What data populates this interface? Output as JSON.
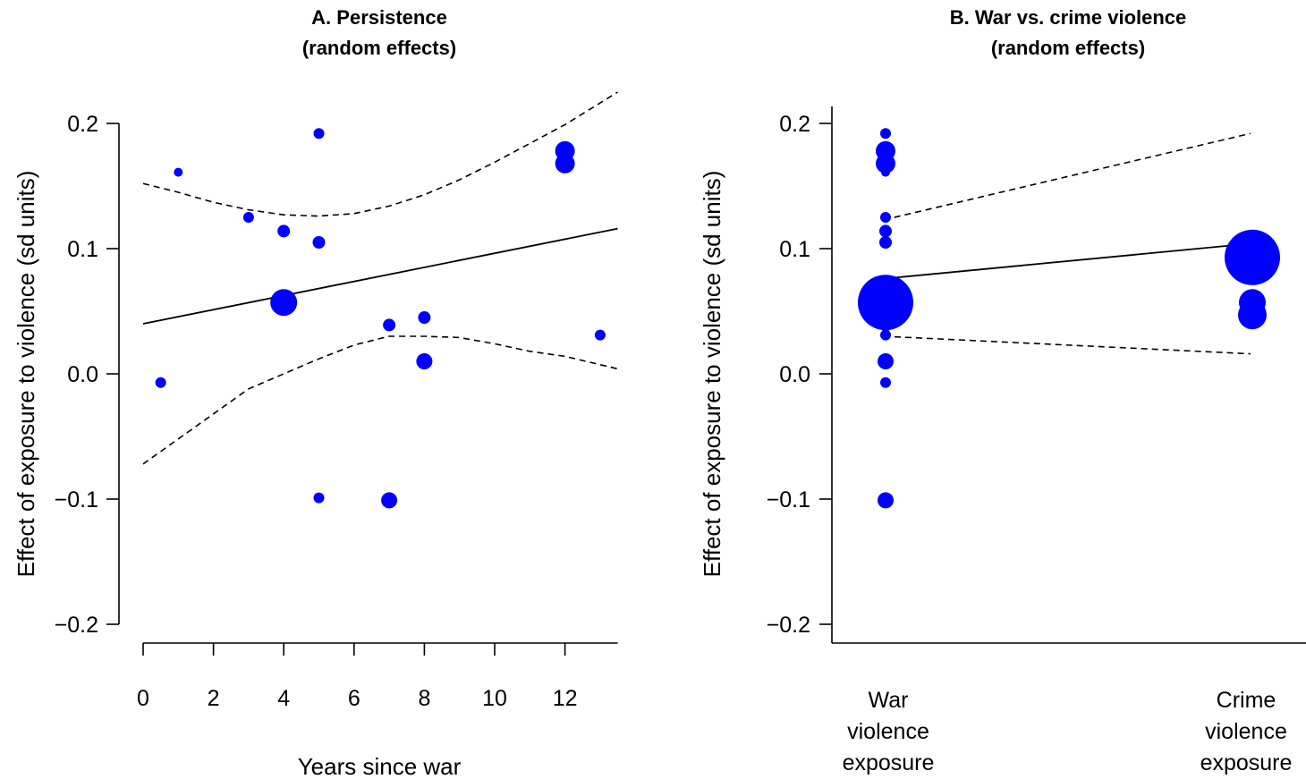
{
  "chart_data": [
    {
      "type": "scatter",
      "title": "A. Persistence",
      "subtitle": "(random effects)",
      "xlabel": "Years since war",
      "ylabel": "Effect of exposure to violence (sd units)",
      "xlim": [
        0,
        13.5
      ],
      "ylim": [
        -0.2,
        0.2
      ],
      "xticks": [
        0,
        2,
        4,
        6,
        8,
        10,
        12
      ],
      "xtick_labels": [
        "0",
        "2",
        "4",
        "6",
        "8",
        "10",
        "12"
      ],
      "yticks": [
        -0.2,
        -0.1,
        0.0,
        0.1,
        0.2
      ],
      "ytick_labels": [
        "−0.2",
        "−0.1",
        "0.0",
        "0.1",
        "0.2"
      ],
      "grid": false,
      "point_color": "#0000ff",
      "points": [
        {
          "x": 0.5,
          "y": -0.007,
          "size": 6
        },
        {
          "x": 1,
          "y": 0.161,
          "size": 5
        },
        {
          "x": 3,
          "y": 0.125,
          "size": 6
        },
        {
          "x": 4,
          "y": 0.114,
          "size": 7
        },
        {
          "x": 4,
          "y": 0.057,
          "size": 15
        },
        {
          "x": 5,
          "y": 0.192,
          "size": 6
        },
        {
          "x": 5,
          "y": 0.105,
          "size": 7
        },
        {
          "x": 5,
          "y": -0.099,
          "size": 6
        },
        {
          "x": 7,
          "y": 0.039,
          "size": 7
        },
        {
          "x": 7,
          "y": -0.101,
          "size": 9
        },
        {
          "x": 8,
          "y": 0.045,
          "size": 7
        },
        {
          "x": 8,
          "y": 0.01,
          "size": 9
        },
        {
          "x": 12,
          "y": 0.178,
          "size": 11
        },
        {
          "x": 12,
          "y": 0.168,
          "size": 11
        },
        {
          "x": 13,
          "y": 0.031,
          "size": 6
        }
      ],
      "fit_line": {
        "x": [
          0,
          13.5
        ],
        "y": [
          0.04,
          0.116
        ]
      },
      "ci_upper": {
        "x": [
          0,
          1,
          2,
          3,
          4,
          5,
          6,
          7,
          8,
          9,
          10,
          11,
          12,
          13.5
        ],
        "y": [
          0.152,
          0.145,
          0.137,
          0.131,
          0.127,
          0.126,
          0.128,
          0.134,
          0.143,
          0.155,
          0.169,
          0.184,
          0.199,
          0.225
        ]
      },
      "ci_lower": {
        "x": [
          0,
          1,
          2,
          3,
          4,
          5,
          6,
          7,
          8,
          9,
          10,
          11,
          12,
          13.5
        ],
        "y": [
          -0.072,
          -0.052,
          -0.032,
          -0.012,
          0.0,
          0.012,
          0.023,
          0.03,
          0.03,
          0.029,
          0.024,
          0.018,
          0.014,
          0.004
        ]
      }
    },
    {
      "type": "scatter",
      "title": "B. War vs. crime violence",
      "subtitle": "(random effects)",
      "xlabel": "",
      "ylabel": "Effect of exposure to violence (sd units)",
      "categories": [
        "War\nviolence\nexposure",
        "Crime\nviolence\nexposure"
      ],
      "ylim": [
        -0.2,
        0.2
      ],
      "yticks": [
        -0.2,
        -0.1,
        0.0,
        0.1,
        0.2
      ],
      "ytick_labels": [
        "−0.2",
        "−0.1",
        "0.0",
        "0.1",
        "0.2"
      ],
      "grid": false,
      "point_color": "#0000ff",
      "points": [
        {
          "category": 0,
          "y": 0.192,
          "size": 6
        },
        {
          "category": 0,
          "y": 0.178,
          "size": 11
        },
        {
          "category": 0,
          "y": 0.168,
          "size": 11
        },
        {
          "category": 0,
          "y": 0.161,
          "size": 5
        },
        {
          "category": 0,
          "y": 0.125,
          "size": 6
        },
        {
          "category": 0,
          "y": 0.114,
          "size": 7
        },
        {
          "category": 0,
          "y": 0.105,
          "size": 7
        },
        {
          "category": 0,
          "y": 0.057,
          "size": 31
        },
        {
          "category": 0,
          "y": 0.039,
          "size": 7
        },
        {
          "category": 0,
          "y": 0.031,
          "size": 6
        },
        {
          "category": 0,
          "y": 0.01,
          "size": 9
        },
        {
          "category": 0,
          "y": -0.007,
          "size": 6
        },
        {
          "category": 0,
          "y": -0.101,
          "size": 9
        },
        {
          "category": 1,
          "y": 0.093,
          "size": 31
        },
        {
          "category": 1,
          "y": 0.057,
          "size": 15
        },
        {
          "category": 1,
          "y": 0.047,
          "size": 16
        }
      ],
      "fit_line": {
        "x": [
          0,
          1
        ],
        "y": [
          0.076,
          0.104
        ]
      },
      "ci_upper": {
        "x": [
          0,
          1
        ],
        "y": [
          0.123,
          0.192
        ]
      },
      "ci_lower": {
        "x": [
          0,
          1
        ],
        "y": [
          0.03,
          0.016
        ]
      }
    }
  ]
}
